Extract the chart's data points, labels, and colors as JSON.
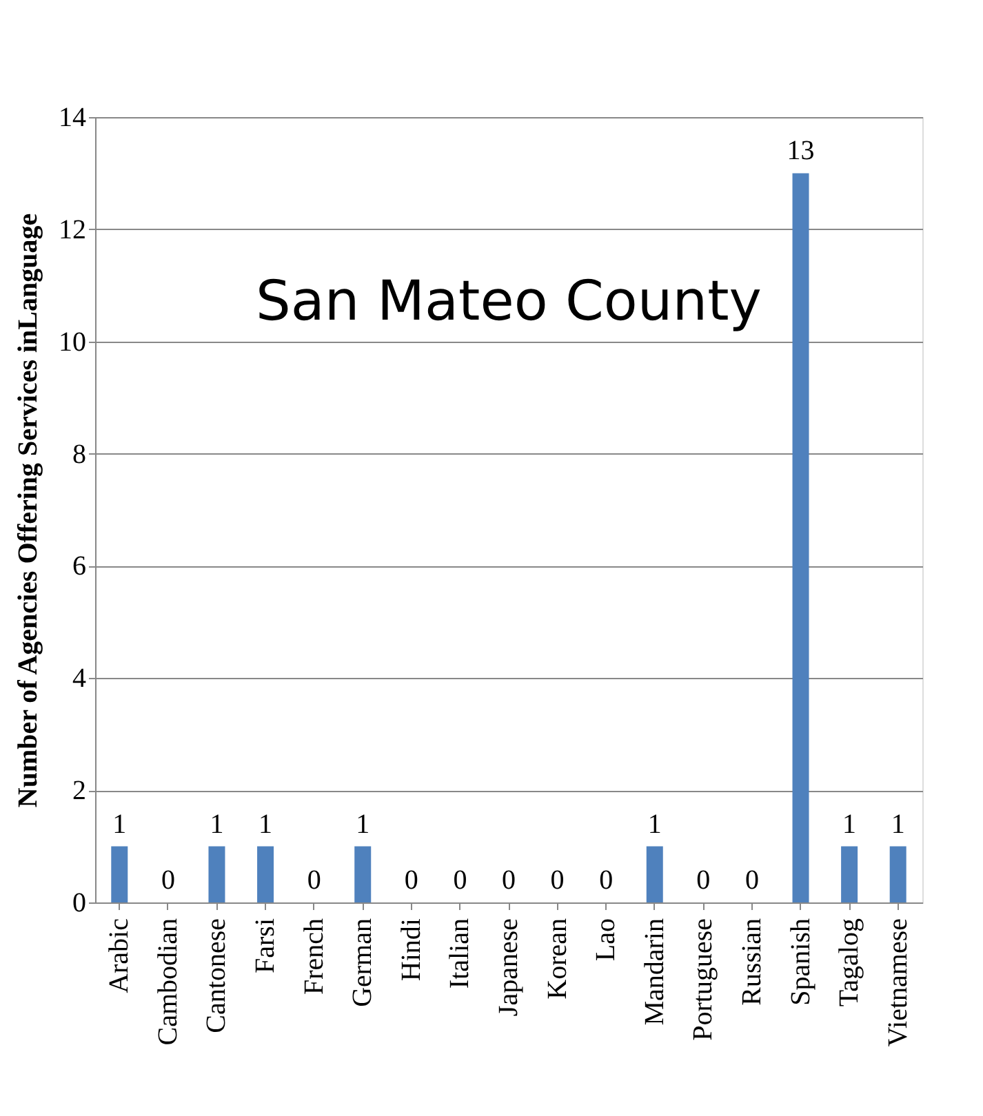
{
  "chart_data": {
    "type": "bar",
    "title": "San Mateo County",
    "ylabel": "Number of Agencies Offering Services inLanguage",
    "categories": [
      "Arabic",
      "Cambodian",
      "Cantonese",
      "Farsi",
      "French",
      "German",
      "Hindi",
      "Italian",
      "Japanese",
      "Korean",
      "Lao",
      "Mandarin",
      "Portuguese",
      "Russian",
      "Spanish",
      "Tagalog",
      "Vietnamese"
    ],
    "values": [
      1,
      0,
      1,
      1,
      0,
      1,
      0,
      0,
      0,
      0,
      0,
      1,
      0,
      0,
      13,
      1,
      1
    ],
    "color": "#4f81bd",
    "ylim": [
      0,
      14
    ],
    "yticks": [
      0,
      2,
      4,
      6,
      8,
      10,
      12,
      14
    ],
    "grid": "y",
    "data_labels": true
  }
}
